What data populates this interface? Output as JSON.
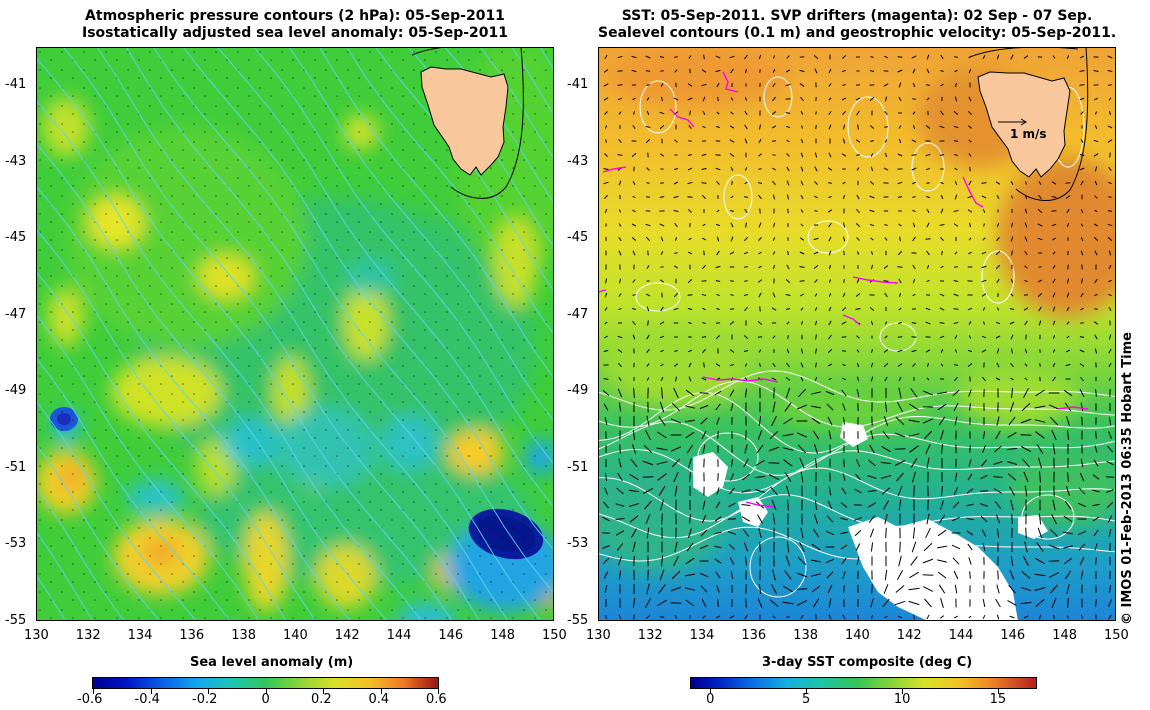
{
  "left_panel": {
    "title_line1": "Atmospheric pressure contours (2 hPa): 05-Sep-2011",
    "title_line2": "Isostatically adjusted sea level anomaly: 05-Sep-2011",
    "colorbar_title": "Sea level anomaly (m)",
    "colorbar_ticks": [
      "-0.6",
      "-0.4",
      "-0.2",
      "0",
      "0.2",
      "0.4",
      "0.6"
    ],
    "colorbar_range": [
      -0.6,
      0.6
    ]
  },
  "right_panel": {
    "title_line1": "SST: 05-Sep-2011. SVP drifters (magenta): 02 Sep - 07 Sep.",
    "title_line2": "Sealevel contours (0.1 m) and geostrophic velocity: 05-Sep-2011.",
    "colorbar_title": "3-day SST composite (deg C)",
    "colorbar_ticks": [
      "0",
      "5",
      "10",
      "15"
    ],
    "colorbar_range": [
      -1,
      17
    ],
    "velocity_scale_label": "1 m/s"
  },
  "axes": {
    "x_ticks": [
      "130",
      "132",
      "134",
      "136",
      "138",
      "140",
      "142",
      "144",
      "146",
      "148",
      "150"
    ],
    "y_ticks": [
      "-41",
      "-43",
      "-45",
      "-47",
      "-49",
      "-51",
      "-53",
      "-55"
    ],
    "lon_range": [
      130,
      150
    ],
    "lat_range": [
      -55,
      -40
    ]
  },
  "credit": "© IMOS 01-Feb-2013 06:35 Hobart Time",
  "colors": {
    "land": "#f8c89c",
    "magenta": "#ff00ff",
    "pressure_contour": "#5fd4ef",
    "sst_contour": "#ffffff"
  }
}
